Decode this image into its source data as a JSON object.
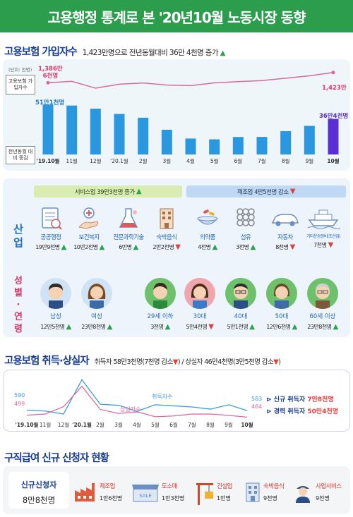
{
  "title": "고용행정 통계로 본 '20년10월 노동시장 동향",
  "insured": {
    "section_title": "고용보험 가입자수",
    "summary": "1,423만명으로 전년동월대비 36만 4천명 증가",
    "unit": "(단위: 천명)",
    "legend_line": "고용보험 가입자수",
    "legend_bar": "전년동월 대비 증감",
    "first_line_label": "1,386만",
    "first_line_label2": "6천명",
    "last_line_label": "1,423만",
    "first_bar_label": "51만1천명",
    "last_bar_label": "36만4천명"
  },
  "chart_data": [
    {
      "type": "bar",
      "title": "고용보험 가입자수",
      "categories": [
        "'19.10월",
        "11월",
        "12월",
        "'20.1월",
        "2월",
        "3월",
        "4월",
        "5월",
        "6월",
        "7월",
        "8월",
        "9월",
        "10월"
      ],
      "series": [
        {
          "name": "전년동월 대비 증감",
          "values": [
            511,
            501,
            469,
            415,
            376,
            253,
            163,
            155,
            179,
            180,
            239,
            293,
            364
          ]
        }
      ],
      "ylabel": "(단위: 천명)"
    },
    {
      "type": "line",
      "title": "고용보험 가입자수",
      "categories": [
        "'19.10월",
        "11월",
        "12월",
        "'20.1월",
        "2월",
        "3월",
        "4월",
        "5월",
        "6월",
        "7월",
        "8월",
        "9월",
        "10월"
      ],
      "series": [
        {
          "name": "고용보험 가입자수",
          "values": [
            13866,
            13918,
            13675,
            13816,
            13859,
            13783,
            13767,
            13863,
            13906,
            13943,
            14028,
            14113,
            14230
          ]
        }
      ]
    },
    {
      "type": "line",
      "title": "고용보험 취득·상실자",
      "categories": [
        "'19.10월",
        "11월",
        "12월",
        "'20.1월",
        "2월",
        "3월",
        "4월",
        "5월",
        "6월",
        "7월",
        "8월",
        "9월",
        "10월"
      ],
      "series": [
        {
          "name": "취득자수",
          "values": [
            590,
            575,
            520,
            1150,
            700,
            680,
            570,
            690,
            670,
            650,
            610,
            690,
            583
          ]
        },
        {
          "name": "상실자수",
          "values": [
            499,
            520,
            655,
            1030,
            605,
            530,
            560,
            470,
            485,
            520,
            520,
            495,
            464
          ]
        }
      ],
      "first_values": {
        "취득자수": "590",
        "상실자수": "499"
      },
      "last_values": {
        "취득자수": "583",
        "상실자수": "464"
      }
    }
  ],
  "industry": {
    "side_label_industry": [
      "산",
      "업"
    ],
    "side_label_gender": [
      "성",
      "별",
      "·",
      "연",
      "령"
    ],
    "service_group": "서비스업 39만3천명 증가",
    "manufacture_group": "제조업 4만5천명 감소",
    "items": [
      {
        "name": "공공행정",
        "value": "19만9천명",
        "trend": "up",
        "icon": "report-icon"
      },
      {
        "name": "보건복지",
        "value": "10만2천명",
        "trend": "up",
        "icon": "medical-icon"
      },
      {
        "name": "전문과학기술",
        "value": "6만명",
        "trend": "up",
        "icon": "flask-icon"
      },
      {
        "name": "숙박음식",
        "value": "2만2천명",
        "trend": "down",
        "icon": "hotel-icon"
      },
      {
        "name": "의약품",
        "value": "4천명",
        "trend": "up",
        "icon": "medicine-icon"
      },
      {
        "name": "섬유",
        "value": "3천명",
        "trend": "up",
        "icon": "fabric-icon"
      },
      {
        "name": "자동차",
        "value": "8천명",
        "trend": "down",
        "icon": "car-icon"
      },
      {
        "name": "기타운송장비(조선업)",
        "value": "7천명",
        "trend": "down",
        "icon": "ship-icon"
      }
    ],
    "people": [
      {
        "name": "남성",
        "value": "12만5천명",
        "trend": "up",
        "icon": "man-face-icon"
      },
      {
        "name": "여성",
        "value": "23만8천명",
        "trend": "up",
        "icon": "woman-face-icon"
      },
      {
        "name": "29세 이하",
        "value": "3천명",
        "trend": "up",
        "icon": "young-face-icon"
      },
      {
        "name": "30대",
        "value": "5만4천명",
        "trend": "down",
        "icon": "thirties-face-icon"
      },
      {
        "name": "40대",
        "value": "5만1천명",
        "trend": "up",
        "icon": "forties-face-icon"
      },
      {
        "name": "50대",
        "value": "12만6천명",
        "trend": "up",
        "icon": "fifties-face-icon"
      },
      {
        "name": "60세 이상",
        "value": "23만8천명",
        "trend": "up",
        "icon": "senior-face-icon"
      }
    ]
  },
  "acq": {
    "section_title": "고용보험 취득·상실자",
    "summary": "취득자 58만3천명(7천명 감소",
    "summary2": ") / 상실자 46만4천명(3만5천명 감소",
    "summary_end": ")",
    "acq_label": "취득자수",
    "loss_label": "상실자수",
    "legend_new": "신규 취득자",
    "legend_new_val": "7만8천명",
    "legend_exp": "경력 취득자",
    "legend_exp_val": "50만4천명"
  },
  "applicants": {
    "section_title": "구직급여 신규 신청자 현황",
    "box_title": "신규신청자",
    "box_value": "8만8천명",
    "items": [
      {
        "name": "제조업",
        "value": "1만6천명",
        "icon": "factory-icon"
      },
      {
        "name": "도소매",
        "value": "1만3천명",
        "icon": "store-icon"
      },
      {
        "name": "건설업",
        "value": "1만명",
        "icon": "crane-icon"
      },
      {
        "name": "숙박음식",
        "value": "9천명",
        "icon": "hotel-icon"
      },
      {
        "name": "사업서비스",
        "value": "9천명",
        "icon": "security-guard-icon"
      }
    ]
  },
  "colors": {
    "green": "#2b9d4d",
    "navy": "#173d8f",
    "bar_blue": "#2a98e0",
    "bar_purple": "#5b2fd6",
    "line_pink": "#d96a9c",
    "acq_blue": "#3b9be0",
    "loss_pink": "#e06a9c"
  }
}
